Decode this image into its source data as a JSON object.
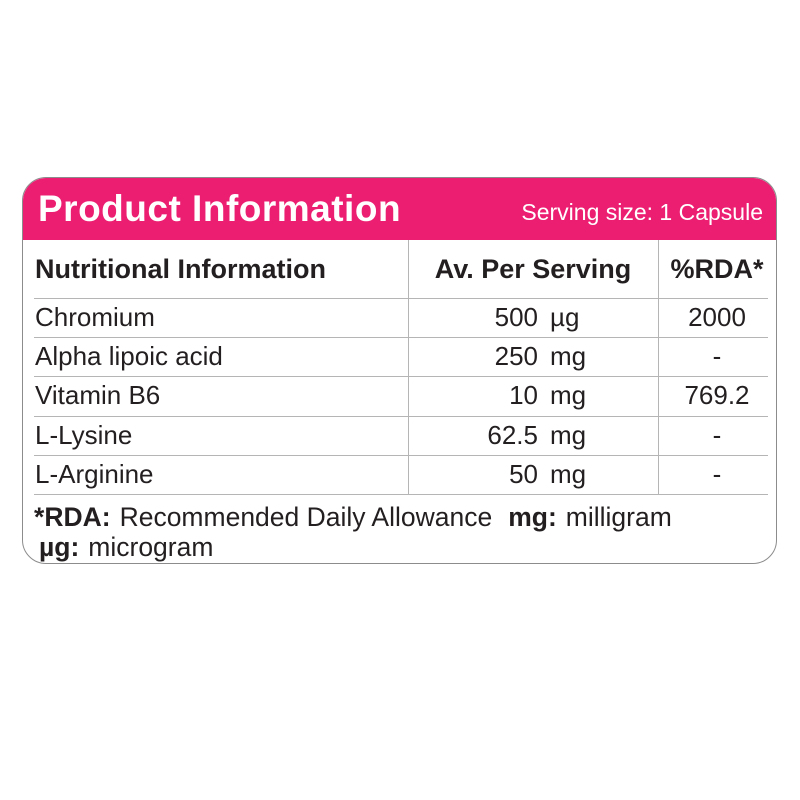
{
  "banner": {
    "title": "Product Information",
    "serving_size": "Serving size: 1 Capsule"
  },
  "table": {
    "header": {
      "name": "Nutritional Information",
      "amount": "Av. Per Serving",
      "rda": "%RDA*"
    },
    "rows": [
      {
        "name": "Chromium",
        "value": "500",
        "unit": "µg",
        "rda": "2000"
      },
      {
        "name": "Alpha lipoic acid",
        "value": "250",
        "unit": "mg",
        "rda": "-"
      },
      {
        "name": "Vitamin B6",
        "value": "10",
        "unit": "mg",
        "rda": "769.2"
      },
      {
        "name": "L-Lysine",
        "value": "62.5",
        "unit": "mg",
        "rda": "-"
      },
      {
        "name": "L-Arginine",
        "value": "50",
        "unit": "mg",
        "rda": "-"
      }
    ]
  },
  "footnote": {
    "rda_label": "*RDA:",
    "rda_text": "Recommended Daily Allowance",
    "mg_label": "mg:",
    "mg_text": "milligram",
    "ug_label": "µg:",
    "ug_text": "microgram"
  },
  "colors": {
    "accent_pink": "#EC1E71",
    "text": "#231F20",
    "grid_line": "#B5B5B5",
    "card_border": "#8C8C8C"
  }
}
